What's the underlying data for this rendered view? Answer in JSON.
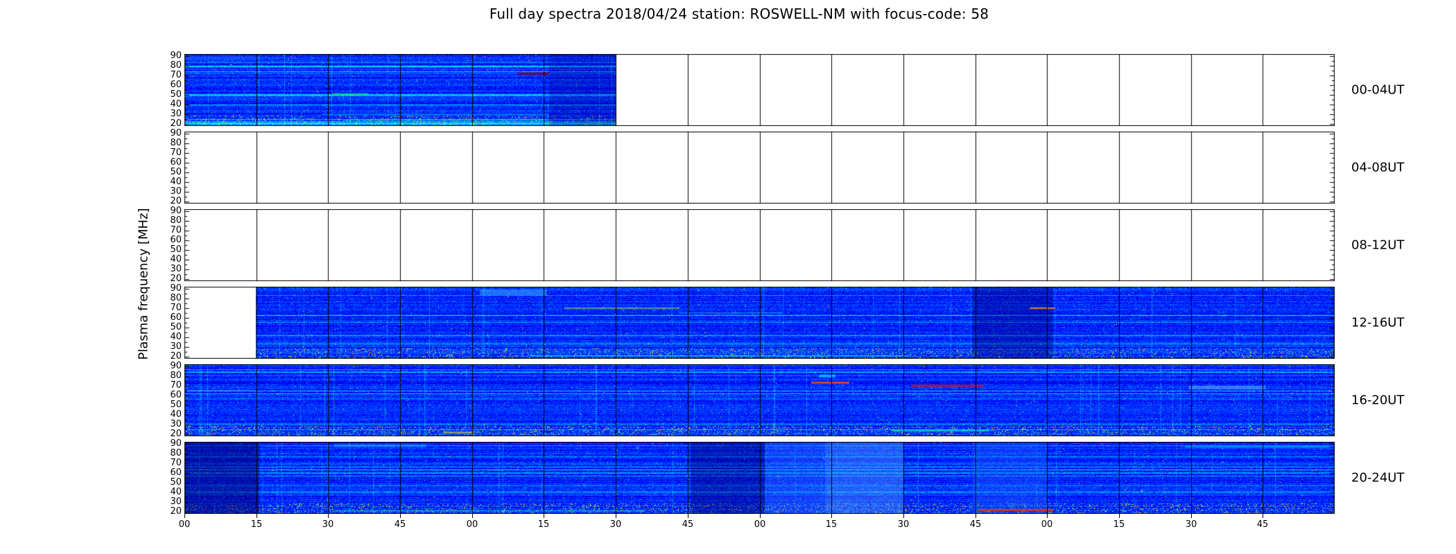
{
  "chart_data": {
    "type": "heatmap",
    "title": "Full day spectra 2018/04/24 station: ROSWELL-NM with focus-code: 58",
    "ylabel": "Plasma frequency [MHz]",
    "xlabel": "",
    "colormap": "jet",
    "background": "#ffffff",
    "grid": true,
    "y_range": [
      18,
      92
    ],
    "y_ticks": [
      90,
      80,
      70,
      60,
      50,
      40,
      30,
      20
    ],
    "y_minor_ticks": [
      85,
      75,
      65,
      55,
      45,
      35,
      25
    ],
    "x_span_hours": 4,
    "x_tick_labels": [
      "00",
      "15",
      "30",
      "45",
      "00",
      "15",
      "30",
      "45",
      "00",
      "15",
      "30",
      "45",
      "00",
      "15",
      "30",
      "45"
    ],
    "panels": [
      {
        "label": "00-04UT",
        "segments": [
          {
            "start": 0.0,
            "end": 0.375
          }
        ],
        "features": [
          {
            "type": "hband",
            "x0": 0.0,
            "x1": 0.065,
            "f": 88,
            "h": 4,
            "color": "#3366ff",
            "alpha": 0.35
          },
          {
            "type": "hband",
            "x0": 0.129,
            "x1": 0.16,
            "f": 51,
            "h": 1.5,
            "color": "#00dd66",
            "alpha": 0.85
          },
          {
            "type": "hband",
            "x0": 0.29,
            "x1": 0.317,
            "f": 72,
            "h": 2,
            "color": "#8b0000",
            "alpha": 0.9
          },
          {
            "type": "hband",
            "x0": 0.12,
            "x1": 0.317,
            "f": 30,
            "h": 1.2,
            "color": "#00e5ff",
            "alpha": 0.5
          },
          {
            "type": "hband",
            "x0": 0.14,
            "x1": 0.317,
            "f": 24,
            "h": 1.2,
            "color": "#00ffaa",
            "alpha": 0.4
          },
          {
            "type": "vband",
            "x0": 0.317,
            "x1": 0.375,
            "color": "#000099",
            "alpha": 0.35
          }
        ]
      },
      {
        "label": "04-08UT",
        "segments": [],
        "features": []
      },
      {
        "label": "08-12UT",
        "segments": [],
        "features": []
      },
      {
        "label": "12-16UT",
        "segments": [
          {
            "start": 0.062,
            "end": 1.0
          }
        ],
        "features": [
          {
            "type": "hband",
            "x0": 0.257,
            "x1": 0.315,
            "f": 86,
            "h": 6,
            "color": "#44ccff",
            "alpha": 0.45
          },
          {
            "type": "hband",
            "x0": 0.33,
            "x1": 0.43,
            "f": 70,
            "h": 1.5,
            "color": "#bbff00",
            "alpha": 0.5
          },
          {
            "type": "hband",
            "x0": 0.43,
            "x1": 0.52,
            "f": 65,
            "h": 1.2,
            "color": "#55ffbb",
            "alpha": 0.4
          },
          {
            "type": "hband",
            "x0": 0.3,
            "x1": 0.63,
            "f": 21,
            "h": 1.5,
            "color": "#00ffee",
            "alpha": 0.55
          },
          {
            "type": "vband",
            "x0": 0.685,
            "x1": 0.755,
            "color": "#000077",
            "alpha": 0.4
          },
          {
            "type": "hband",
            "x0": 0.735,
            "x1": 0.757,
            "f": 70,
            "h": 1.5,
            "color": "#ff8800",
            "alpha": 0.9
          }
        ]
      },
      {
        "label": "16-20UT",
        "segments": [
          {
            "start": 0.0,
            "end": 1.0
          }
        ],
        "features": [
          {
            "type": "hband",
            "x0": 0.0,
            "x1": 0.06,
            "f": 65,
            "h": 1.5,
            "color": "#4499ff",
            "alpha": 0.5
          },
          {
            "type": "hband",
            "x0": 0.545,
            "x1": 0.578,
            "f": 73,
            "h": 2,
            "color": "#ff5500",
            "alpha": 0.85
          },
          {
            "type": "hband",
            "x0": 0.552,
            "x1": 0.566,
            "f": 80,
            "h": 3,
            "color": "#00ffff",
            "alpha": 0.6
          },
          {
            "type": "hband",
            "x0": 0.632,
            "x1": 0.695,
            "f": 70,
            "h": 2,
            "color": "#cc1100",
            "alpha": 0.9
          },
          {
            "type": "hband",
            "x0": 0.873,
            "x1": 0.94,
            "f": 68,
            "h": 4,
            "color": "#66bbff",
            "alpha": 0.5
          },
          {
            "type": "hband",
            "x0": 0.615,
            "x1": 0.7,
            "f": 24,
            "h": 1.8,
            "color": "#00ffdd",
            "alpha": 0.6
          },
          {
            "type": "hband",
            "x0": 0.225,
            "x1": 0.252,
            "f": 22,
            "h": 1.5,
            "color": "#ffee00",
            "alpha": 0.6
          }
        ]
      },
      {
        "label": "20-24UT",
        "segments": [
          {
            "start": 0.0,
            "end": 1.0
          }
        ],
        "features": [
          {
            "type": "vband",
            "x0": 0.0,
            "x1": 0.065,
            "color": "#000066",
            "alpha": 0.5
          },
          {
            "type": "vband",
            "x0": 0.44,
            "x1": 0.505,
            "color": "#000066",
            "alpha": 0.4
          },
          {
            "type": "vband",
            "x0": 0.505,
            "x1": 0.557,
            "color": "#3377ff",
            "alpha": 0.35
          },
          {
            "type": "vband",
            "x0": 0.557,
            "x1": 0.625,
            "color": "#55aaff",
            "alpha": 0.4
          },
          {
            "type": "vband",
            "x0": 0.685,
            "x1": 0.75,
            "color": "#2266ff",
            "alpha": 0.35
          },
          {
            "type": "hband",
            "x0": 0.69,
            "x1": 0.756,
            "f": 22,
            "h": 2,
            "color": "#ff2200",
            "alpha": 0.9
          },
          {
            "type": "hband",
            "x0": 0.87,
            "x1": 0.995,
            "f": 87,
            "h": 2.5,
            "color": "#00ccff",
            "alpha": 0.5
          },
          {
            "type": "hband",
            "x0": 0.13,
            "x1": 0.21,
            "f": 88,
            "h": 3,
            "color": "#33bbff",
            "alpha": 0.45
          },
          {
            "type": "hband",
            "x0": 0.13,
            "x1": 0.4,
            "f": 21,
            "h": 1.5,
            "color": "#00ffbb",
            "alpha": 0.45
          }
        ]
      }
    ]
  }
}
